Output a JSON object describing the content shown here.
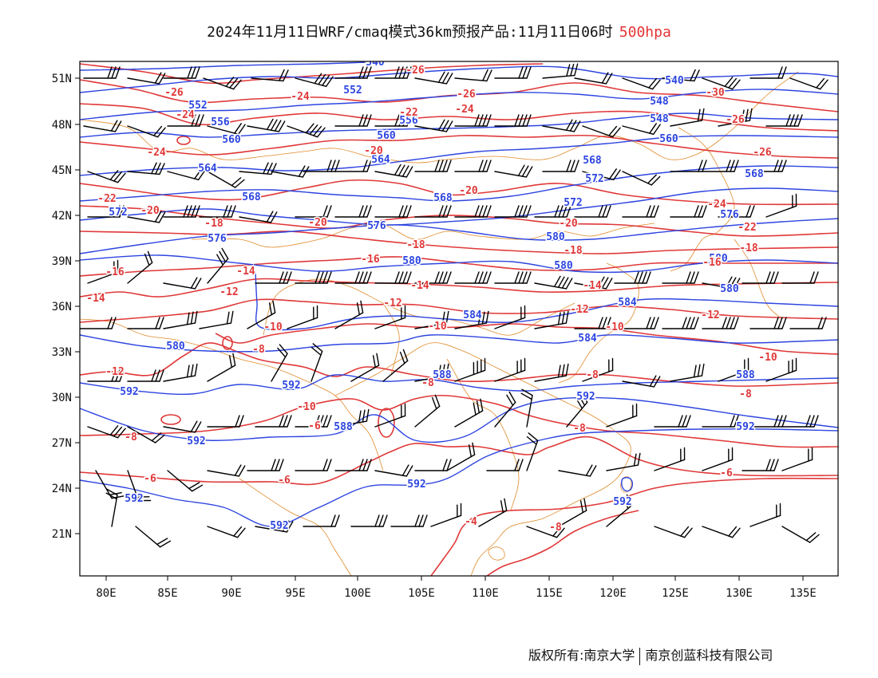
{
  "title": {
    "main": "2024年11月11日WRF/cmaq模式36km预报产品:11月11日06时",
    "level": "500hpa"
  },
  "footer": {
    "copyright": "版权所有:南京大学",
    "company": "南京创蓝科技有限公司"
  },
  "map": {
    "lon_labels": [
      "80E",
      "85E",
      "90E",
      "95E",
      "100E",
      "105E",
      "110E",
      "115E",
      "120E",
      "125E",
      "130E",
      "135E"
    ],
    "lat_labels": [
      "51N",
      "48N",
      "45N",
      "42N",
      "39N",
      "36N",
      "33N",
      "30N",
      "27N",
      "24N",
      "21N"
    ],
    "height_labels": [
      "540",
      "548",
      "552",
      "556",
      "560",
      "564",
      "568",
      "572",
      "576",
      "580",
      "584",
      "588",
      "592"
    ],
    "temp_labels": [
      "-30",
      "-26",
      "-24",
      "-22",
      "-20",
      "-18",
      "-16",
      "-14",
      "-12",
      "-10",
      "-8",
      "-6",
      "-4"
    ],
    "colors": {
      "height_contour": "#2d45e0",
      "temperature_contour": "#e03838",
      "coastline_border": "#e08a2a",
      "wind_barb": "#000000",
      "level_text": "#e53333"
    }
  }
}
